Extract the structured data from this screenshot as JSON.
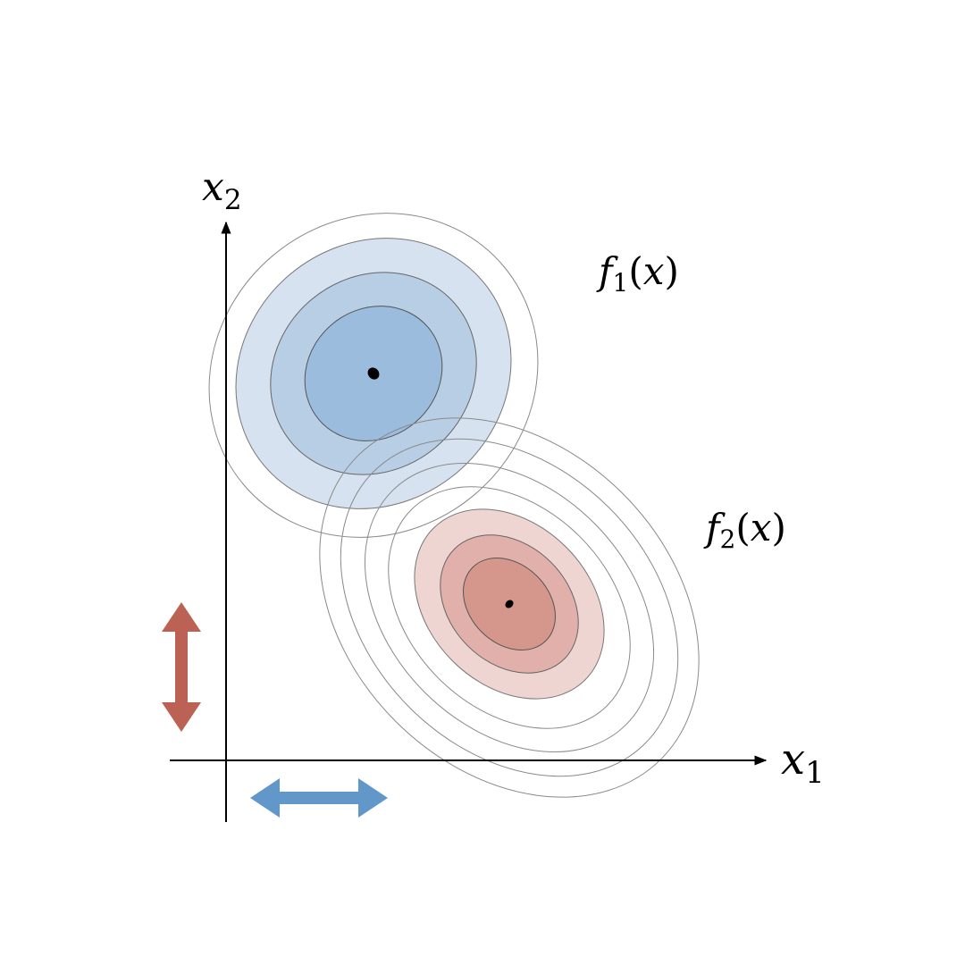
{
  "labels": {
    "x1_var": "x",
    "x1_sub": "1",
    "x2_var": "x",
    "x2_sub": "2",
    "f1_name": "f",
    "f1_sub": "1",
    "f1_open": "(",
    "f1_arg": "x",
    "f1_close": ")",
    "f2_name": "f",
    "f2_sub": "2",
    "f2_open": "(",
    "f2_arg": "x",
    "f2_close": ")"
  },
  "colors": {
    "blue_outer": "#d6e2ef",
    "blue_mid": "#b8cee5",
    "blue_inner": "#9bbcdc",
    "red_outer": "#efd5d2",
    "red_mid": "#e2b0aa",
    "red_inner": "#d5968b",
    "contour_line": "#8a8a8a",
    "axis": "#000000",
    "arrow_red": "#bb6255",
    "arrow_blue": "#6297c9"
  },
  "icons": {
    "vertical_arrow": "double-headed-vertical-arrow-icon",
    "horizontal_arrow": "double-headed-horizontal-arrow-icon"
  }
}
